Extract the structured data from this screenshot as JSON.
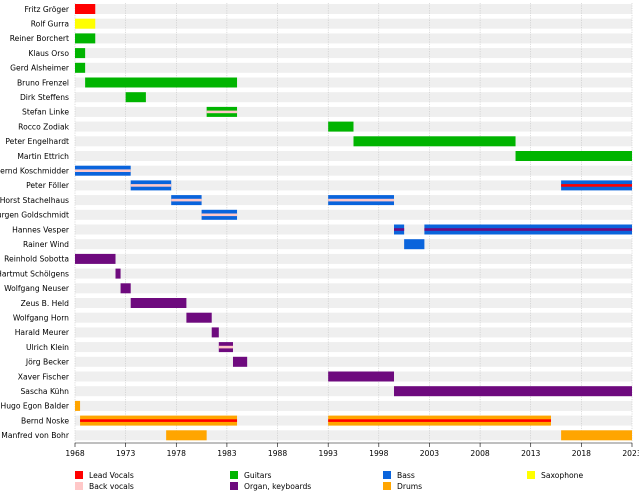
{
  "chart_data": {
    "type": "timeline",
    "x_range": [
      1968,
      2023
    ],
    "x_ticks": [
      1968,
      1973,
      1978,
      1983,
      1988,
      1993,
      1998,
      2003,
      2008,
      2013,
      2018,
      2023
    ],
    "colors": {
      "lead_vocals": "#ff0000",
      "back_vocals": "#ffc8c8",
      "guitars": "#00b400",
      "organ": "#6e0a7e",
      "bass": "#0a64dc",
      "drums": "#ffa500",
      "saxophone": "#ffff00"
    },
    "legend": [
      {
        "key": "lead_vocals",
        "label": "Lead Vocals"
      },
      {
        "key": "back_vocals",
        "label": "Back vocals"
      },
      {
        "key": "guitars",
        "label": "Guitars"
      },
      {
        "key": "organ",
        "label": "Organ, keyboards"
      },
      {
        "key": "bass",
        "label": "Bass"
      },
      {
        "key": "drums",
        "label": "Drums"
      },
      {
        "key": "saxophone",
        "label": "Saxophone"
      }
    ],
    "members": [
      {
        "name": "Fritz Gröger",
        "periods": [
          {
            "start": 1968,
            "end": 1970,
            "role": "lead_vocals"
          }
        ]
      },
      {
        "name": "Rolf Gurra",
        "periods": [
          {
            "start": 1968,
            "end": 1970,
            "role": "saxophone"
          }
        ]
      },
      {
        "name": "Reiner Borchert",
        "periods": [
          {
            "start": 1968,
            "end": 1970,
            "role": "guitars"
          }
        ]
      },
      {
        "name": "Klaus Orso",
        "periods": [
          {
            "start": 1968,
            "end": 1969,
            "role": "guitars"
          }
        ]
      },
      {
        "name": "Gerd Alsheimer",
        "periods": [
          {
            "start": 1968,
            "end": 1969,
            "role": "guitars"
          }
        ]
      },
      {
        "name": "Bruno Frenzel",
        "periods": [
          {
            "start": 1969,
            "end": 1984,
            "role": "guitars"
          }
        ]
      },
      {
        "name": "Dirk Steffens",
        "periods": [
          {
            "start": 1973,
            "end": 1975,
            "role": "guitars"
          }
        ]
      },
      {
        "name": "Stefan Linke",
        "periods": [
          {
            "start": 1981,
            "end": 1984,
            "role": "guitars",
            "secondary": "back_vocals"
          }
        ]
      },
      {
        "name": "Rocco Zodiak",
        "periods": [
          {
            "start": 1993,
            "end": 1995.5,
            "role": "guitars"
          }
        ]
      },
      {
        "name": "Peter Engelhardt",
        "periods": [
          {
            "start": 1995.5,
            "end": 2011.5,
            "role": "guitars"
          }
        ]
      },
      {
        "name": "Martin Ettrich",
        "periods": [
          {
            "start": 2011.5,
            "end": 2023,
            "role": "guitars"
          }
        ]
      },
      {
        "name": "Bernd Koschmidder",
        "periods": [
          {
            "start": 1968,
            "end": 1973.5,
            "role": "bass",
            "secondary": "back_vocals"
          }
        ]
      },
      {
        "name": "Peter Föller",
        "periods": [
          {
            "start": 1973.5,
            "end": 1977.5,
            "role": "bass",
            "secondary": "back_vocals"
          },
          {
            "start": 2016,
            "end": 2023,
            "role": "bass",
            "secondary": "lead_vocals"
          }
        ]
      },
      {
        "name": "Horst Stachelhaus",
        "periods": [
          {
            "start": 1977.5,
            "end": 1980.5,
            "role": "bass",
            "secondary": "back_vocals"
          },
          {
            "start": 1993,
            "end": 1999.5,
            "role": "bass",
            "secondary": "back_vocals"
          }
        ]
      },
      {
        "name": "Jurgen Goldschmidt",
        "periods": [
          {
            "start": 1980.5,
            "end": 1984,
            "role": "bass",
            "secondary": "back_vocals"
          }
        ]
      },
      {
        "name": "Hannes Vesper",
        "periods": [
          {
            "start": 1999.5,
            "end": 2000.5,
            "role": "bass",
            "secondary": "organ"
          },
          {
            "start": 2002.5,
            "end": 2023,
            "role": "bass",
            "secondary": "organ"
          }
        ]
      },
      {
        "name": "Rainer Wind",
        "periods": [
          {
            "start": 2000.5,
            "end": 2002.5,
            "role": "bass"
          }
        ]
      },
      {
        "name": "Reinhold Sobotta",
        "periods": [
          {
            "start": 1968,
            "end": 1972,
            "role": "organ"
          }
        ]
      },
      {
        "name": "Hartmut Schölgens",
        "periods": [
          {
            "start": 1972,
            "end": 1972.5,
            "role": "organ"
          }
        ]
      },
      {
        "name": "Wolfgang Neuser",
        "periods": [
          {
            "start": 1972.5,
            "end": 1973.5,
            "role": "organ"
          }
        ]
      },
      {
        "name": "Zeus B. Held",
        "periods": [
          {
            "start": 1973.5,
            "end": 1979,
            "role": "organ"
          }
        ]
      },
      {
        "name": "Wolfgang Horn",
        "periods": [
          {
            "start": 1979,
            "end": 1981.5,
            "role": "organ"
          }
        ]
      },
      {
        "name": "Harald Meurer",
        "periods": [
          {
            "start": 1981.5,
            "end": 1982.2,
            "role": "organ"
          }
        ]
      },
      {
        "name": "Ulrich Klein",
        "periods": [
          {
            "start": 1982.2,
            "end": 1983.6,
            "role": "organ",
            "secondary": "back_vocals"
          }
        ]
      },
      {
        "name": "Jörg Becker",
        "periods": [
          {
            "start": 1983.6,
            "end": 1985,
            "role": "organ"
          }
        ]
      },
      {
        "name": "Xaver Fischer",
        "periods": [
          {
            "start": 1993,
            "end": 1999.5,
            "role": "organ"
          }
        ]
      },
      {
        "name": "Sascha Kühn",
        "periods": [
          {
            "start": 1999.5,
            "end": 2023,
            "role": "organ"
          }
        ]
      },
      {
        "name": "Hugo Egon Balder",
        "periods": [
          {
            "start": 1968,
            "end": 1968.5,
            "role": "drums"
          }
        ]
      },
      {
        "name": "Bernd Noske",
        "periods": [
          {
            "start": 1968.5,
            "end": 1984,
            "role": "drums",
            "secondary": "lead_vocals"
          },
          {
            "start": 1993,
            "end": 2015,
            "role": "drums",
            "secondary": "lead_vocals"
          }
        ]
      },
      {
        "name": "Manfred von Bohr",
        "periods": [
          {
            "start": 1977,
            "end": 1981,
            "role": "drums"
          },
          {
            "start": 2016,
            "end": 2023,
            "role": "drums"
          }
        ]
      }
    ]
  }
}
